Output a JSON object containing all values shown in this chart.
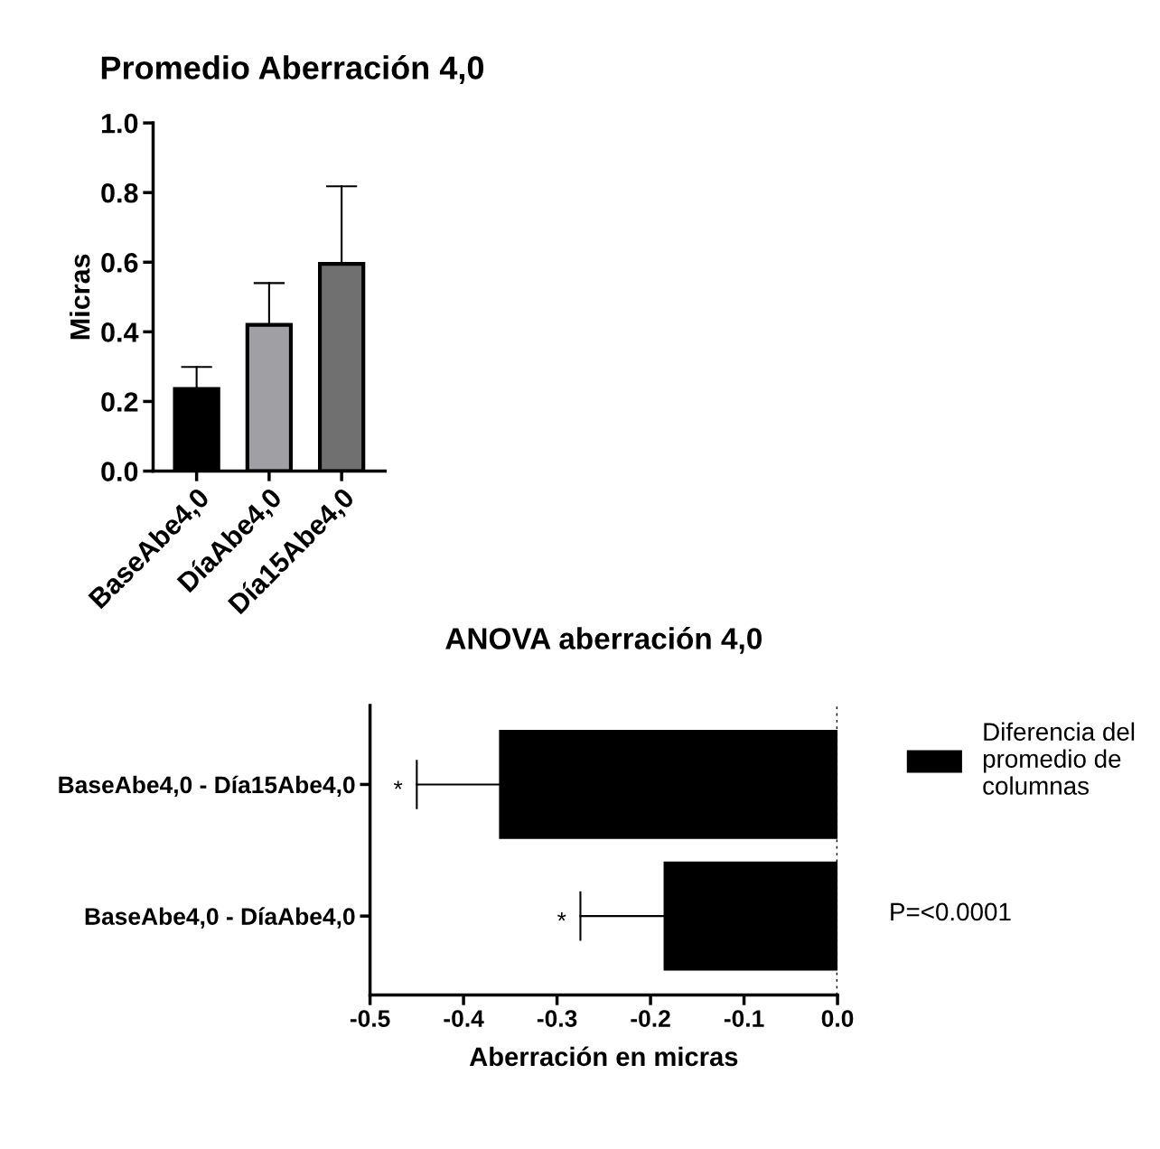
{
  "chart_data": [
    {
      "type": "bar",
      "title": "Promedio Aberración 4,0",
      "ylabel": "Micras",
      "categories": [
        "BaseAbe4,0",
        "DíaAbe4,0",
        "Día15Abe4,0"
      ],
      "values": [
        0.236,
        0.42,
        0.595
      ],
      "errors": [
        [
          0.236,
          0.299
        ],
        [
          0.42,
          0.54
        ],
        [
          0.595,
          0.818
        ]
      ],
      "colors": [
        "#000000",
        "#a0a0a4",
        "#707070"
      ],
      "ylim": [
        0,
        1.0
      ],
      "yticks": [
        {
          "value": 0,
          "label": "0.0"
        },
        0.2,
        0.4,
        0.6,
        0.8,
        {
          "value": 1,
          "label": "1.0"
        }
      ],
      "grid": false
    },
    {
      "type": "bar",
      "orientation": "horizontal",
      "title": "ANOVA aberración 4,0",
      "xlabel": "Aberración en micras",
      "categories": [
        "BaseAbe4,0 - Día15Abe4,0",
        "BaseAbe4,0 - DíaAbe4,0"
      ],
      "series": [
        {
          "name": "Diferencia del promedio de columnas",
          "color": "#000000",
          "values": [
            -0.36,
            -0.184
          ],
          "errors": [
            [
              -0.45,
              -0.36
            ],
            [
              -0.275,
              -0.184
            ]
          ]
        }
      ],
      "xlim": [
        -0.5,
        0.0
      ],
      "xticks": [
        -0.5,
        -0.4,
        -0.3,
        -0.2,
        -0.1,
        {
          "value": 0,
          "label": "0.0"
        }
      ],
      "ref_lines": [
        {
          "axis": "x",
          "value": 0,
          "line_style": "dotted",
          "color": "#000000"
        }
      ],
      "annotations": [
        "*",
        "*",
        "P=<0.0001"
      ],
      "legend": "top right",
      "grid": false
    }
  ]
}
